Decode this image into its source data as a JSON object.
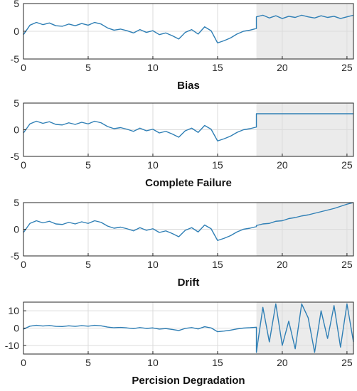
{
  "colors": {
    "line": "#2f7fb5",
    "fault_shade": "#ebebeb",
    "grid": "#dcdcdc",
    "axis": "#262626",
    "background": "#ffffff"
  },
  "chart_data": [
    {
      "type": "line",
      "title": "Bias",
      "xlabel": "Bias",
      "xlim": [
        0,
        25.5
      ],
      "ylim": [
        -5,
        5
      ],
      "xticks": [
        "0",
        "5",
        "10",
        "15",
        "20",
        "25"
      ],
      "yticks": [
        "5",
        "0",
        "-5"
      ],
      "grid": true,
      "fault_region": [
        18,
        25.5
      ],
      "fault": {
        "kind": "bias",
        "start": 18,
        "offset": 2.6
      },
      "series": [
        {
          "x": [],
          "y": []
        }
      ]
    },
    {
      "type": "line",
      "title": "Complete Failure",
      "xlabel": "Complete Failure",
      "xlim": [
        0,
        25.5
      ],
      "ylim": [
        -5,
        5
      ],
      "xticks": [
        "0",
        "5",
        "10",
        "15",
        "20",
        "25"
      ],
      "yticks": [
        "5",
        "0",
        "-5"
      ],
      "grid": true,
      "fault_region": [
        18,
        25.5
      ],
      "fault": {
        "kind": "constant",
        "start": 18,
        "value": 3
      },
      "series": [
        {
          "x": [],
          "y": []
        }
      ]
    },
    {
      "type": "line",
      "title": "Drift",
      "xlabel": "Drift",
      "xlim": [
        0,
        25.5
      ],
      "ylim": [
        -5,
        5
      ],
      "xticks": [
        "0",
        "5",
        "10",
        "15",
        "20",
        "25"
      ],
      "yticks": [
        "5",
        "0",
        "-5"
      ],
      "grid": true,
      "fault_region": [
        18,
        25.5
      ],
      "fault": {
        "kind": "drift",
        "start": 18,
        "rate": 0.75
      },
      "series": [
        {
          "x": [],
          "y": []
        }
      ]
    },
    {
      "type": "line",
      "title": "Percision Degradation",
      "xlabel": "Percision Degradation",
      "xlim": [
        0,
        25.5
      ],
      "ylim": [
        -15,
        15
      ],
      "xticks": [
        "0",
        "5",
        "10",
        "15",
        "20",
        "25"
      ],
      "yticks": [
        "10",
        "0",
        "-10"
      ],
      "grid": true,
      "fault_region": [
        18,
        25.5
      ],
      "fault": {
        "kind": "noise",
        "start": 18,
        "amplitude": 12
      },
      "series": [
        {
          "x": [],
          "y": []
        }
      ]
    }
  ],
  "base_signal": {
    "x": [
      0,
      0.5,
      1,
      1.5,
      2,
      2.5,
      3,
      3.5,
      4,
      4.5,
      5,
      5.5,
      6,
      6.5,
      7,
      7.5,
      8,
      8.5,
      9,
      9.5,
      10,
      10.5,
      11,
      11.5,
      12,
      12.5,
      13,
      13.5,
      14,
      14.5,
      15,
      15.5,
      16,
      16.5,
      17,
      17.5,
      18
    ],
    "y": [
      -0.6,
      1.1,
      1.6,
      1.2,
      1.5,
      1.0,
      0.9,
      1.3,
      1.0,
      1.4,
      1.1,
      1.6,
      1.3,
      0.6,
      0.2,
      0.4,
      0.1,
      -0.3,
      0.3,
      -0.2,
      0.1,
      -0.6,
      -0.3,
      -0.8,
      -1.4,
      -0.2,
      0.3,
      -0.5,
      0.8,
      0.1,
      -2.1,
      -1.7,
      -1.2,
      -0.5,
      0.0,
      0.2,
      0.5
    ]
  },
  "fault_series": {
    "bias": [
      2.6,
      2.9,
      2.4,
      2.8,
      2.3,
      2.7,
      2.5,
      2.9,
      2.6,
      2.4,
      2.8,
      2.5,
      2.7,
      2.3,
      2.6,
      2.9
    ],
    "drift": [
      0.7,
      1.0,
      1.1,
      1.5,
      1.6,
      2.0,
      2.2,
      2.5,
      2.7,
      3.0,
      3.3,
      3.6,
      3.9,
      4.3,
      4.7,
      5.0
    ],
    "noise": [
      -14,
      12,
      -8,
      14,
      -10,
      4,
      -12,
      14,
      6,
      -14,
      10,
      -6,
      13,
      -11,
      14,
      -8
    ],
    "noise_x": [
      18,
      18.5,
      19,
      19.5,
      20,
      20.5,
      21,
      21.5,
      22,
      22.5,
      23,
      23.5,
      24,
      24.5,
      25,
      25.5
    ]
  }
}
